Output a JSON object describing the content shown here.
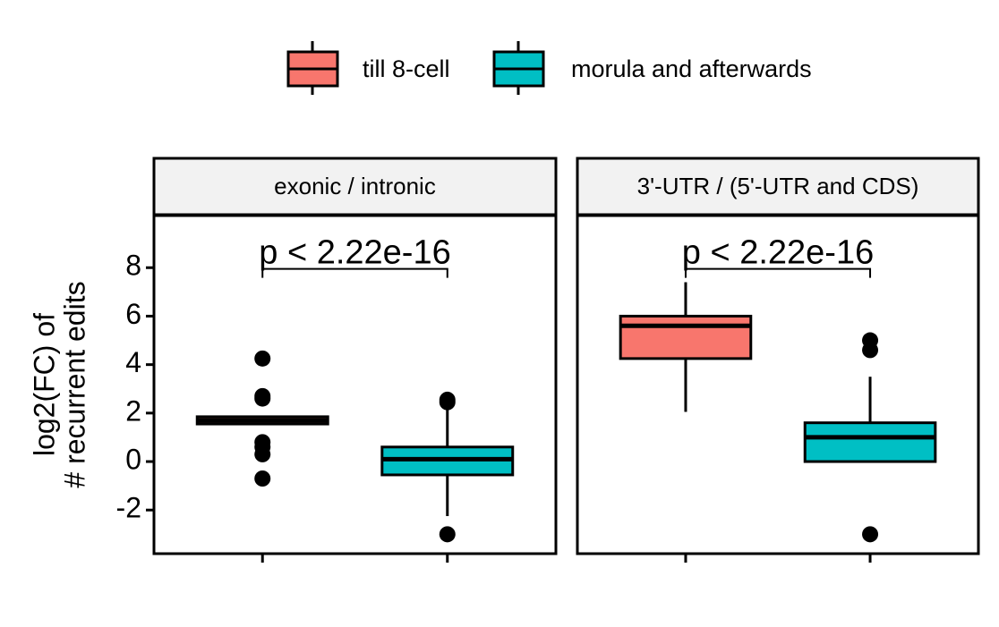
{
  "chart_data": [
    {
      "type": "box",
      "title": "exonic / intronic",
      "annotation": "p < 2.22e-16",
      "ylabel": [
        "log2(FC) of",
        "# recurrent edits"
      ],
      "ylim": [
        -3.8,
        10.15
      ],
      "yticks": [
        -2,
        0,
        2,
        4,
        6,
        8
      ],
      "series": [
        {
          "name": "till 8-cell",
          "color": "#f8766d",
          "whisker_low": 1.5,
          "q1": 1.55,
          "median": 1.7,
          "q3": 1.85,
          "whisker_high": 1.9,
          "outliers": [
            4.25,
            2.7,
            2.6,
            0.8,
            0.6,
            0.3,
            -0.7
          ]
        },
        {
          "name": "morula and afterwards",
          "color": "#00bfc4",
          "whisker_low": -2.25,
          "q1": -0.55,
          "median": 0.1,
          "q3": 0.6,
          "whisker_high": 2.35,
          "outliers": [
            2.55,
            2.45,
            -3.0
          ]
        }
      ]
    },
    {
      "type": "box",
      "title": "3'-UTR / (5'-UTR and CDS)",
      "annotation": "p < 2.22e-16",
      "ylim": [
        -3.8,
        10.15
      ],
      "series": [
        {
          "color": "#f8766d",
          "whisker_low": 2.05,
          "q1": 4.25,
          "median": 5.6,
          "q3": 6.0,
          "whisker_high": 7.4,
          "outliers": []
        },
        {
          "color": "#00bfc4",
          "whisker_low": 0,
          "q1": 0,
          "median": 1.0,
          "q3": 1.6,
          "whisker_high": 3.5,
          "outliers": [
            5.0,
            4.6,
            -3.0
          ]
        }
      ]
    }
  ]
}
